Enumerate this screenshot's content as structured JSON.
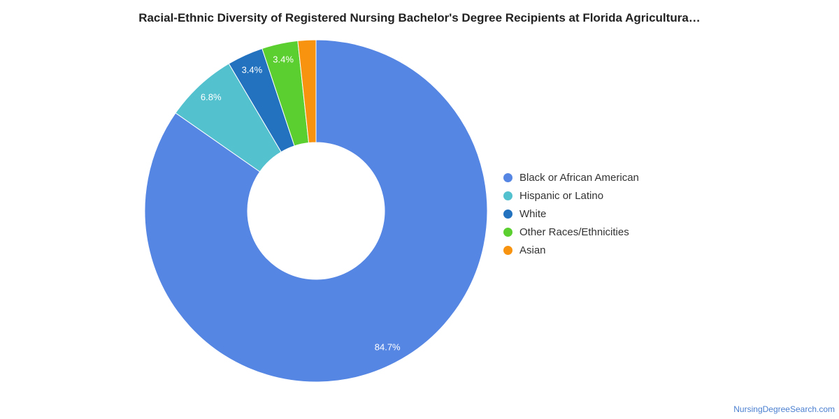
{
  "chart_data": {
    "type": "pie",
    "variant": "donut",
    "title": "Racial-Ethnic Diversity of Registered Nursing Bachelor's Degree Recipients at Florida Agricultura…",
    "legend_position": "right",
    "slices": [
      {
        "name": "Black or African American",
        "value": 84.7,
        "label": "84.7%",
        "color": "#5686e3"
      },
      {
        "name": "Hispanic or Latino",
        "value": 6.8,
        "label": "6.8%",
        "color": "#54c1cf"
      },
      {
        "name": "White",
        "value": 3.4,
        "label": "3.4%",
        "color": "#2272bf"
      },
      {
        "name": "Other Races/Ethnicities",
        "value": 3.4,
        "label": "3.4%",
        "color": "#5ccf30"
      },
      {
        "name": "Asian",
        "value": 1.7,
        "label": "",
        "color": "#f7930e"
      }
    ]
  },
  "footer": {
    "source": "NursingDegreeSearch.com"
  }
}
